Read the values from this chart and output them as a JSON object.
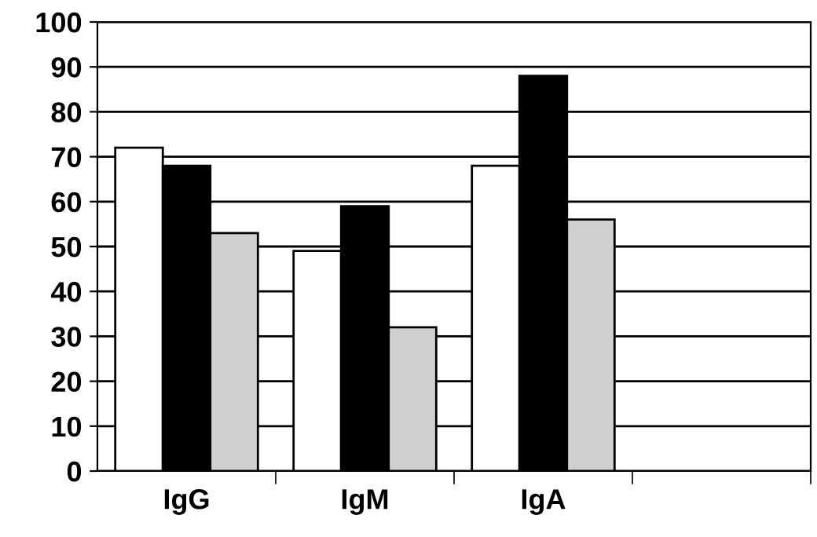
{
  "chart_data": {
    "type": "bar",
    "categories": [
      "IgG",
      "IgM",
      "IgA",
      null
    ],
    "series": [
      {
        "color": "#ffffff",
        "values": [
          72,
          49,
          68,
          null
        ]
      },
      {
        "color": "#000000",
        "values": [
          68,
          59,
          88,
          null
        ]
      },
      {
        "color": "#d0d0d0",
        "values": [
          53,
          32,
          56,
          null
        ]
      }
    ],
    "ylim": [
      0,
      100
    ],
    "yticks": [
      0,
      10,
      20,
      30,
      40,
      50,
      60,
      70,
      80,
      90,
      100
    ],
    "grid": "y",
    "legend": false
  }
}
